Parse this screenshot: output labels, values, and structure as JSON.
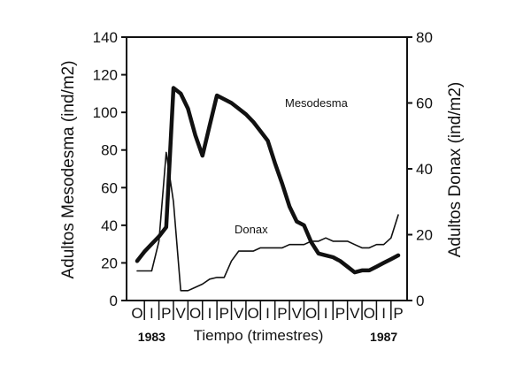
{
  "chart_data": {
    "type": "line",
    "title": "",
    "xlabel": "Tiempo (trimestres)",
    "ylabel_left": "Adultos Mesodesma (ind/m2)",
    "ylabel_right": "Adultos Donax (ind/m2)",
    "ylim_left": [
      0,
      140
    ],
    "ylim_right": [
      0,
      80
    ],
    "yticks_left": [
      "0",
      "20",
      "40",
      "60",
      "80",
      "100",
      "120",
      "140"
    ],
    "yticks_right": [
      "0",
      "20",
      "40",
      "60",
      "80"
    ],
    "categories": [
      "O",
      "I",
      "P",
      "V",
      "O",
      "I",
      "P",
      "V",
      "O",
      "I",
      "P",
      "V",
      "O",
      "I",
      "P",
      "V",
      "O",
      "I",
      "P"
    ],
    "year_labels": [
      {
        "label": "1983",
        "index": 1
      },
      {
        "label": "1987",
        "index": 17
      }
    ],
    "grid": false,
    "series": [
      {
        "name": "Mesodesma",
        "axis": "left",
        "style": "thick",
        "x": [
          0,
          0.5,
          1,
          1.5,
          2,
          2.5,
          3,
          3.5,
          4,
          4.5,
          5,
          5.5,
          6,
          6.5,
          7,
          7.5,
          8,
          8.5,
          9,
          9.5,
          10,
          10.5,
          11,
          11.5,
          12,
          12.5,
          13,
          13.5,
          14,
          14.5,
          15,
          15.5,
          16,
          16.5,
          17,
          17.5,
          18
        ],
        "values": [
          21,
          26,
          30,
          34,
          39,
          113,
          110,
          102,
          88,
          77,
          93,
          109,
          107,
          105,
          102,
          99,
          95,
          90,
          85,
          73,
          62,
          50,
          42,
          40,
          31,
          25,
          24,
          23,
          21,
          18,
          15,
          16,
          16,
          18,
          20,
          22,
          24
        ]
      },
      {
        "name": "Donax",
        "axis": "right",
        "style": "thin",
        "x": [
          0,
          0.5,
          1,
          1.5,
          2,
          2.5,
          3,
          3.5,
          4,
          4.5,
          5,
          5.5,
          6,
          6.5,
          7,
          7.5,
          8,
          8.5,
          9,
          9.5,
          10,
          10.5,
          11,
          11.5,
          12,
          12.5,
          13,
          13.5,
          14,
          14.5,
          15,
          15.5,
          16,
          16.5,
          17,
          17.5,
          18
        ],
        "values": [
          9,
          9,
          9,
          18,
          45,
          30,
          3,
          3,
          4,
          5,
          6.5,
          7,
          7,
          12,
          15,
          15,
          15,
          16,
          16,
          16,
          16,
          17,
          17,
          17,
          18,
          18,
          19,
          18,
          18,
          18,
          17,
          16,
          16,
          17,
          17,
          19,
          26
        ]
      }
    ],
    "annotations": [
      {
        "text": "Mesodesma",
        "series": "Mesodesma"
      },
      {
        "text": "Donax",
        "series": "Donax"
      }
    ]
  }
}
